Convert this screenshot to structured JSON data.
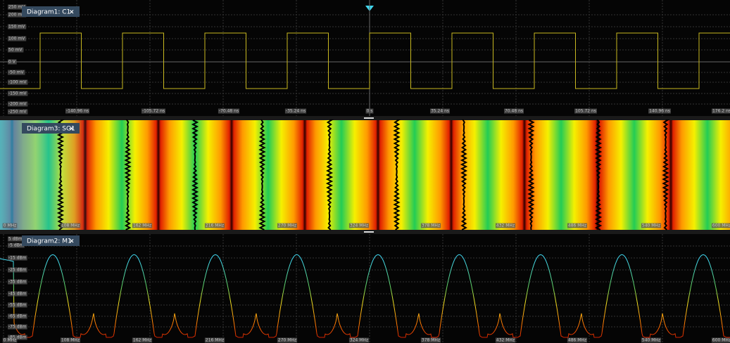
{
  "diagrams": [
    {
      "title": "Diagram1: C1",
      "close": "×",
      "y_labels": [
        "250 mV",
        "200 mV",
        "150 mV",
        "100 mV",
        "50 mV",
        "0 V",
        "-50 mV",
        "-100 mV",
        "-150 mV",
        "-200 mV",
        "-250 mV"
      ],
      "x_labels": [
        "-140.96 ns",
        "-105.72 ns",
        "-70.48 ns",
        "-35.24 ns",
        "0 s",
        "35.24 ns",
        "70.48 ns",
        "105.72 ns",
        "140.96 ns",
        "176.2 ns"
      ]
    },
    {
      "title": "Diagram3: SG1",
      "close": "×",
      "x_labels": [
        "0 MHz",
        "108 MHz",
        "162 MHz",
        "216 MHz",
        "270 MHz",
        "324 MHz",
        "378 MHz",
        "432 MHz",
        "486 MHz",
        "540 MHz",
        "600 MHz"
      ]
    },
    {
      "title": "Diagram2: M1",
      "close": "×",
      "y_labels": [
        "5 dBm",
        "-5 dBm",
        "-15 dBm",
        "-25 dBm",
        "-35 dBm",
        "-45 dBm",
        "-55 dBm",
        "-65 dBm",
        "-75 dBm",
        "-85 dBm"
      ],
      "x_labels": [
        "0 MHz",
        "108 MHz",
        "162 MHz",
        "216 MHz",
        "270 MHz",
        "324 MHz",
        "378 MHz",
        "432 MHz",
        "486 MHz",
        "540 MHz",
        "600 MHz"
      ]
    }
  ]
}
